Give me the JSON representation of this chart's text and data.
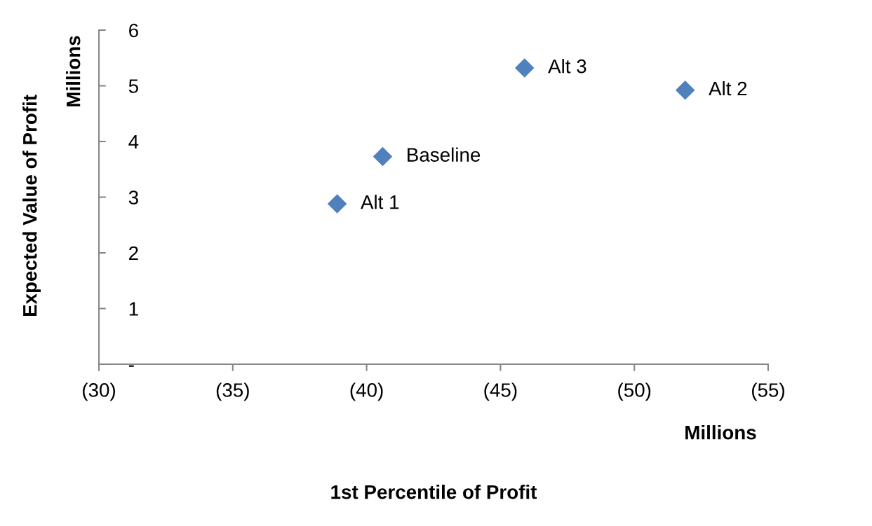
{
  "chart_data": {
    "type": "scatter",
    "xlabel": "1st Percentile of Profit",
    "ylabel": "Expected Value of Profit",
    "annotations": [
      "Millions",
      "Millions"
    ],
    "series": [
      {
        "name": "Alt 1",
        "color": "#4f81bd",
        "x": [
          -38.9
        ],
        "values": [
          2.88
        ]
      },
      {
        "name": "Baseline",
        "color": "#4f81bd",
        "x": [
          -40.6
        ],
        "values": [
          3.73
        ]
      },
      {
        "name": "Alt 3",
        "color": "#4f81bd",
        "x": [
          -45.9
        ],
        "values": [
          5.32
        ]
      },
      {
        "name": "Alt 2",
        "color": "#4f81bd",
        "x": [
          -51.9
        ],
        "values": [
          4.92
        ]
      }
    ],
    "xlim": [
      -30,
      -55
    ],
    "xticks": [
      {
        "value": -30,
        "label": "(30)"
      },
      {
        "value": -35,
        "label": "(35)"
      },
      {
        "value": -40,
        "label": "(40)"
      },
      {
        "value": -45,
        "label": "(45)"
      },
      {
        "value": -50,
        "label": "(50)"
      },
      {
        "value": -55,
        "label": "(55)"
      }
    ],
    "ylim": [
      0,
      6
    ],
    "yticks": [
      {
        "value": 0,
        "label": "-"
      },
      1,
      2,
      3,
      4,
      5,
      6
    ],
    "marker": "diamond"
  }
}
